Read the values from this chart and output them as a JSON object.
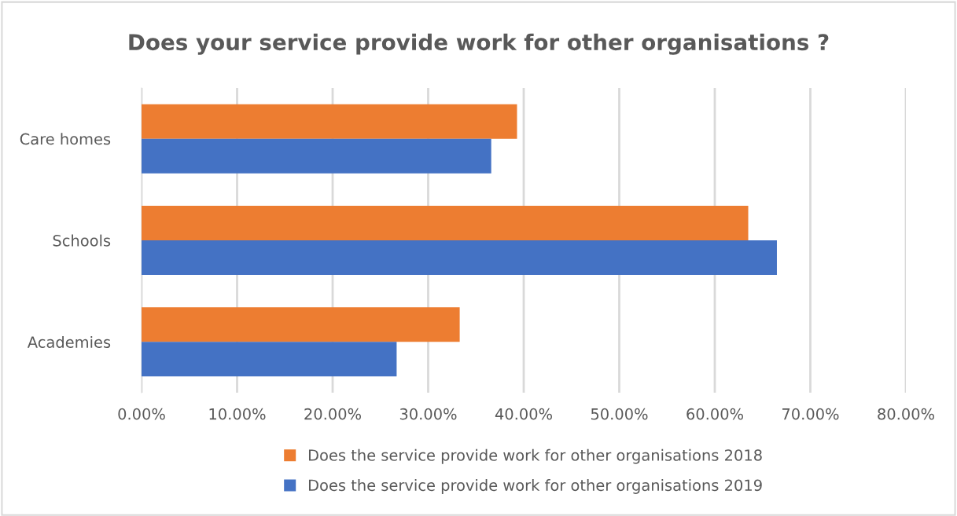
{
  "chart_data": {
    "type": "bar",
    "orientation": "horizontal",
    "title": "Does your service provide work for other organisations ?",
    "categories": [
      "Care homes",
      "Schools",
      "Academies"
    ],
    "series": [
      {
        "name": "Does the service provide work for other organisations 2018",
        "color": "#ed7d31",
        "values": [
          39.3,
          63.5,
          33.3
        ]
      },
      {
        "name": "Does the service provide work for other organisations 2019",
        "color": "#4472c4",
        "values": [
          36.6,
          66.5,
          26.7
        ]
      }
    ],
    "xlim": [
      0,
      80
    ],
    "xticks": [
      {
        "value": 0,
        "label": "0.00%"
      },
      {
        "value": 10,
        "label": "10.00%"
      },
      {
        "value": 20,
        "label": "20.00%"
      },
      {
        "value": 30,
        "label": "30.00%"
      },
      {
        "value": 40,
        "label": "40.00%"
      },
      {
        "value": 50,
        "label": "50.00%"
      },
      {
        "value": 60,
        "label": "60.00%"
      },
      {
        "value": 70,
        "label": "70.00%"
      },
      {
        "value": 80,
        "label": "80.00%"
      }
    ],
    "grid": "x",
    "legend": "bottom"
  }
}
